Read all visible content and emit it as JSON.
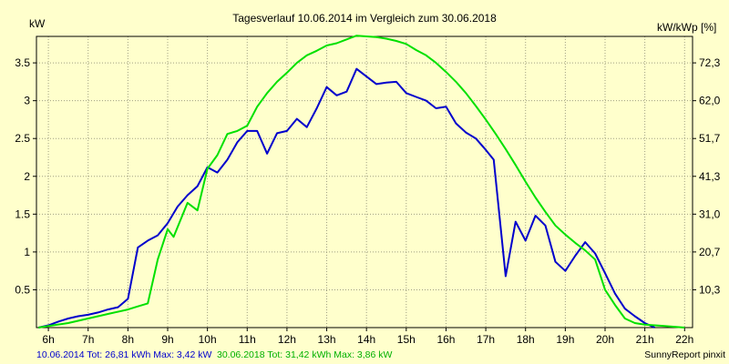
{
  "chart_data": {
    "type": "line",
    "title": "Tagesverlauf 10.06.2014 im Vergleich zum 30.06.2018",
    "y_left_label": "kW",
    "y_right_label": "kW/kWp [%]",
    "x_ticks": [
      "6h",
      "7h",
      "8h",
      "9h",
      "10h",
      "11h",
      "12h",
      "13h",
      "14h",
      "15h",
      "16h",
      "17h",
      "18h",
      "19h",
      "20h",
      "21h",
      "22h"
    ],
    "x_range": [
      5.7,
      22.2
    ],
    "y_left_ticks": [
      "0.5",
      "1",
      "1.5",
      "2",
      "2.5",
      "3",
      "3.5"
    ],
    "y_left_range": [
      0,
      3.85
    ],
    "y_right_ticks": [
      "10,3",
      "20,7",
      "31,0",
      "41,3",
      "51,7",
      "62,0",
      "72,3"
    ],
    "grid": true,
    "series": [
      {
        "name": "10.06.2014",
        "color": "#0000cc",
        "points": [
          [
            5.75,
            0.0
          ],
          [
            6.0,
            0.03
          ],
          [
            6.25,
            0.08
          ],
          [
            6.5,
            0.12
          ],
          [
            6.75,
            0.15
          ],
          [
            7.0,
            0.17
          ],
          [
            7.25,
            0.2
          ],
          [
            7.5,
            0.24
          ],
          [
            7.75,
            0.27
          ],
          [
            8.0,
            0.38
          ],
          [
            8.25,
            1.06
          ],
          [
            8.5,
            1.15
          ],
          [
            8.75,
            1.22
          ],
          [
            9.0,
            1.38
          ],
          [
            9.25,
            1.6
          ],
          [
            9.5,
            1.75
          ],
          [
            9.75,
            1.87
          ],
          [
            10.0,
            2.12
          ],
          [
            10.25,
            2.05
          ],
          [
            10.5,
            2.22
          ],
          [
            10.75,
            2.45
          ],
          [
            11.0,
            2.6
          ],
          [
            11.25,
            2.6
          ],
          [
            11.5,
            2.3
          ],
          [
            11.75,
            2.57
          ],
          [
            12.0,
            2.6
          ],
          [
            12.25,
            2.76
          ],
          [
            12.5,
            2.65
          ],
          [
            12.75,
            2.9
          ],
          [
            13.0,
            3.18
          ],
          [
            13.25,
            3.07
          ],
          [
            13.5,
            3.12
          ],
          [
            13.75,
            3.42
          ],
          [
            14.0,
            3.32
          ],
          [
            14.25,
            3.22
          ],
          [
            14.5,
            3.24
          ],
          [
            14.75,
            3.25
          ],
          [
            15.0,
            3.1
          ],
          [
            15.25,
            3.05
          ],
          [
            15.5,
            3.0
          ],
          [
            15.75,
            2.9
          ],
          [
            16.0,
            2.92
          ],
          [
            16.25,
            2.7
          ],
          [
            16.5,
            2.58
          ],
          [
            16.75,
            2.5
          ],
          [
            17.0,
            2.35
          ],
          [
            17.2,
            2.22
          ],
          [
            17.5,
            0.68
          ],
          [
            17.75,
            1.4
          ],
          [
            18.0,
            1.15
          ],
          [
            18.25,
            1.48
          ],
          [
            18.5,
            1.35
          ],
          [
            18.75,
            0.87
          ],
          [
            19.0,
            0.75
          ],
          [
            19.25,
            0.95
          ],
          [
            19.5,
            1.13
          ],
          [
            19.75,
            0.98
          ],
          [
            20.0,
            0.72
          ],
          [
            20.25,
            0.45
          ],
          [
            20.5,
            0.25
          ],
          [
            20.75,
            0.15
          ],
          [
            21.0,
            0.06
          ],
          [
            21.25,
            0.0
          ]
        ]
      },
      {
        "name": "30.06.2018",
        "color": "#00e000",
        "points": [
          [
            5.75,
            0.0
          ],
          [
            6.0,
            0.02
          ],
          [
            6.5,
            0.06
          ],
          [
            7.0,
            0.12
          ],
          [
            7.5,
            0.18
          ],
          [
            8.0,
            0.24
          ],
          [
            8.25,
            0.28
          ],
          [
            8.5,
            0.32
          ],
          [
            8.75,
            0.9
          ],
          [
            9.0,
            1.3
          ],
          [
            9.15,
            1.2
          ],
          [
            9.5,
            1.65
          ],
          [
            9.75,
            1.55
          ],
          [
            10.0,
            2.1
          ],
          [
            10.25,
            2.28
          ],
          [
            10.5,
            2.56
          ],
          [
            10.75,
            2.6
          ],
          [
            11.0,
            2.67
          ],
          [
            11.25,
            2.92
          ],
          [
            11.5,
            3.1
          ],
          [
            11.75,
            3.25
          ],
          [
            12.0,
            3.37
          ],
          [
            12.25,
            3.5
          ],
          [
            12.5,
            3.6
          ],
          [
            12.75,
            3.66
          ],
          [
            13.0,
            3.73
          ],
          [
            13.25,
            3.76
          ],
          [
            13.5,
            3.81
          ],
          [
            13.75,
            3.86
          ],
          [
            14.0,
            3.85
          ],
          [
            14.25,
            3.84
          ],
          [
            14.5,
            3.82
          ],
          [
            14.75,
            3.79
          ],
          [
            15.0,
            3.75
          ],
          [
            15.25,
            3.67
          ],
          [
            15.5,
            3.6
          ],
          [
            15.75,
            3.5
          ],
          [
            16.0,
            3.38
          ],
          [
            16.25,
            3.25
          ],
          [
            16.5,
            3.1
          ],
          [
            16.75,
            2.93
          ],
          [
            17.0,
            2.75
          ],
          [
            17.25,
            2.56
          ],
          [
            17.5,
            2.36
          ],
          [
            17.75,
            2.15
          ],
          [
            18.0,
            1.93
          ],
          [
            18.25,
            1.72
          ],
          [
            18.5,
            1.53
          ],
          [
            18.75,
            1.35
          ],
          [
            19.0,
            1.23
          ],
          [
            19.25,
            1.12
          ],
          [
            19.5,
            1.02
          ],
          [
            19.75,
            0.9
          ],
          [
            20.0,
            0.5
          ],
          [
            20.25,
            0.3
          ],
          [
            20.5,
            0.12
          ],
          [
            20.75,
            0.06
          ],
          [
            21.0,
            0.04
          ],
          [
            21.5,
            0.02
          ],
          [
            22.0,
            0.0
          ]
        ]
      }
    ]
  },
  "footer": {
    "legend_a": "10.06.2014 Tot: 26,81 kWh Max: 3,42 kW",
    "legend_b": "30.06.2018 Tot: 31,42 kWh Max: 3,86 kW",
    "credit": "SunnyReport pinxit"
  },
  "colors": {
    "background": "#ffffcc",
    "grid": "#a0a080",
    "series_a": "#0000cc",
    "series_b": "#00e000"
  }
}
